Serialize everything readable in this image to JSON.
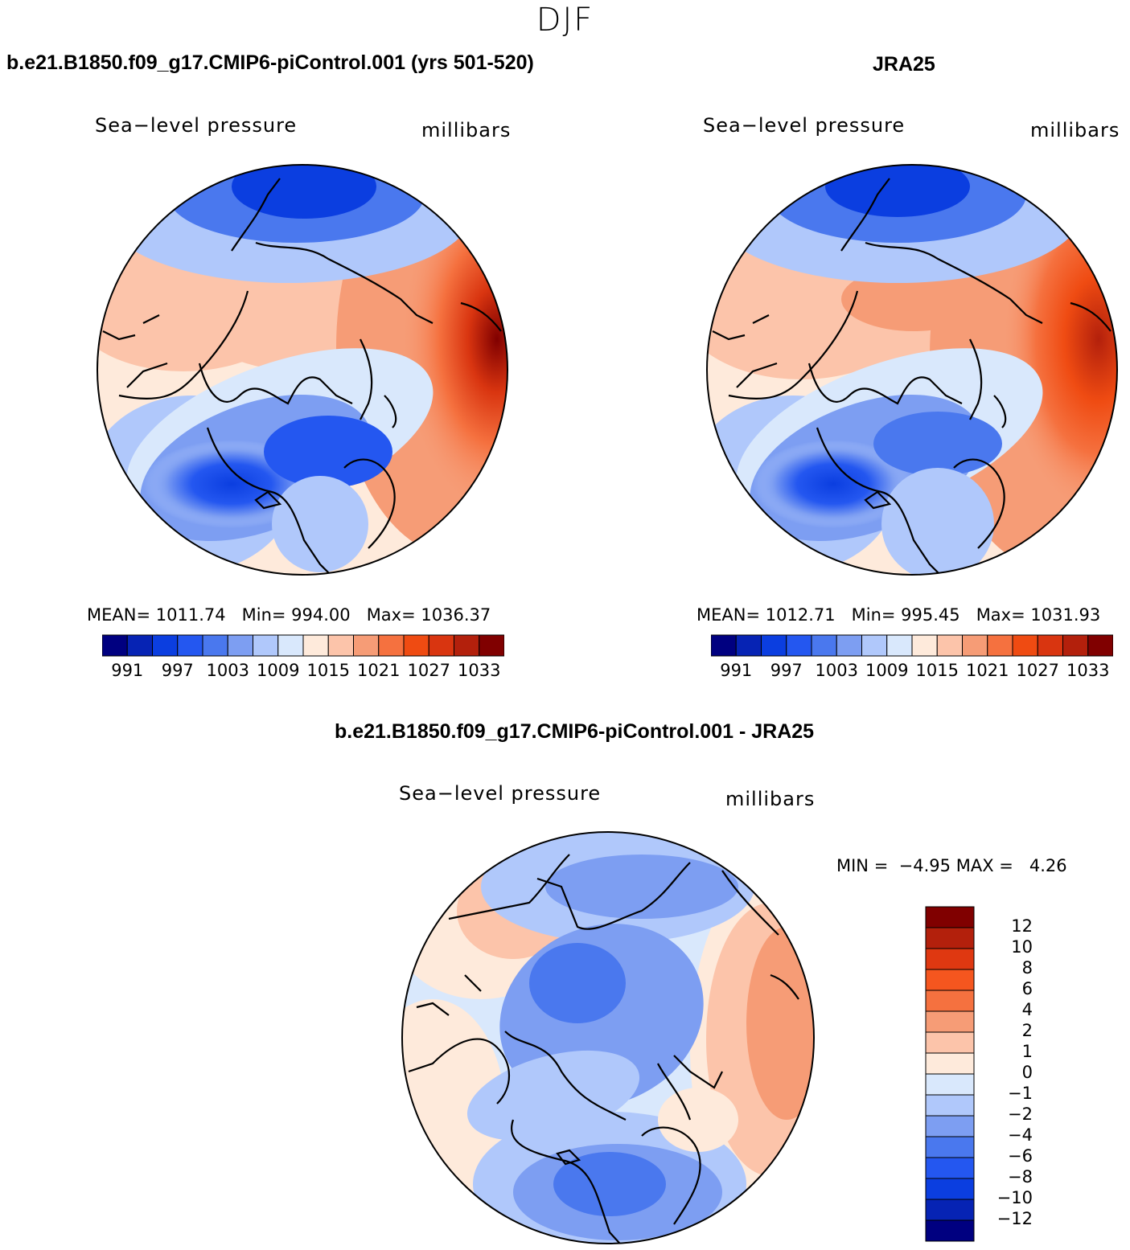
{
  "season": "DJF",
  "panels": [
    {
      "title": "b.e21.B1850.f09_g17.CMIP6-piControl.001 (yrs 501-520)",
      "variable": "Sea−level pressure",
      "units": "millibars",
      "mean_label": "MEAN=",
      "mean": "1011.74",
      "min_label": "Min=",
      "min": "994.00",
      "max_label": "Max=",
      "max": "1036.37"
    },
    {
      "title": "JRA25",
      "variable": "Sea−level pressure",
      "units": "millibars",
      "mean_label": "MEAN=",
      "mean": "1012.71",
      "min_label": "Min=",
      "min": "995.45",
      "max_label": "Max=",
      "max": "1031.93"
    }
  ],
  "abs_colorbar": {
    "ticks": [
      "991",
      "997",
      "1003",
      "1009",
      "1015",
      "1021",
      "1027",
      "1033"
    ],
    "colors": [
      "#000080",
      "#0623b4",
      "#0b3ee0",
      "#2457f0",
      "#4a78ee",
      "#7d9ef2",
      "#b0c8fb",
      "#d9e8fc",
      "#feeadb",
      "#fcc4aa",
      "#f69c76",
      "#f5713f",
      "#ef4b12",
      "#d93510",
      "#b3200c",
      "#800000"
    ]
  },
  "diff_panel": {
    "title": "b.e21.B1850.f09_g17.CMIP6-piControl.001 - JRA25",
    "variable": "Sea−level pressure",
    "units": "millibars",
    "min_label": "MIN =",
    "min": "−4.95",
    "max_label": "MAX =",
    "max": "4.26"
  },
  "diff_colorbar": {
    "labels": [
      "12",
      "10",
      "8",
      "6",
      "4",
      "2",
      "1",
      "0",
      "−1",
      "−2",
      "−4",
      "−6",
      "−8",
      "−10",
      "−12"
    ],
    "colors": [
      "#800000",
      "#b3200c",
      "#df3811",
      "#f5561f",
      "#f5713f",
      "#f69c76",
      "#fcc4aa",
      "#feeadb",
      "#d9e8fc",
      "#b0c8fb",
      "#7d9ef2",
      "#4a78ee",
      "#2457f0",
      "#0b3ee0",
      "#0623b4",
      "#000080"
    ]
  },
  "palette": {
    "deep_blue": "#0b3ee0",
    "mid_blue": "#4a78ee",
    "light_blue": "#b0c8fb",
    "pale_blue": "#d9e8fc",
    "pale_orange": "#feeadb",
    "light_orange": "#fcc4aa",
    "orange": "#f69c76",
    "red_orange": "#ef4b12",
    "dark_red": "#b3200c"
  }
}
